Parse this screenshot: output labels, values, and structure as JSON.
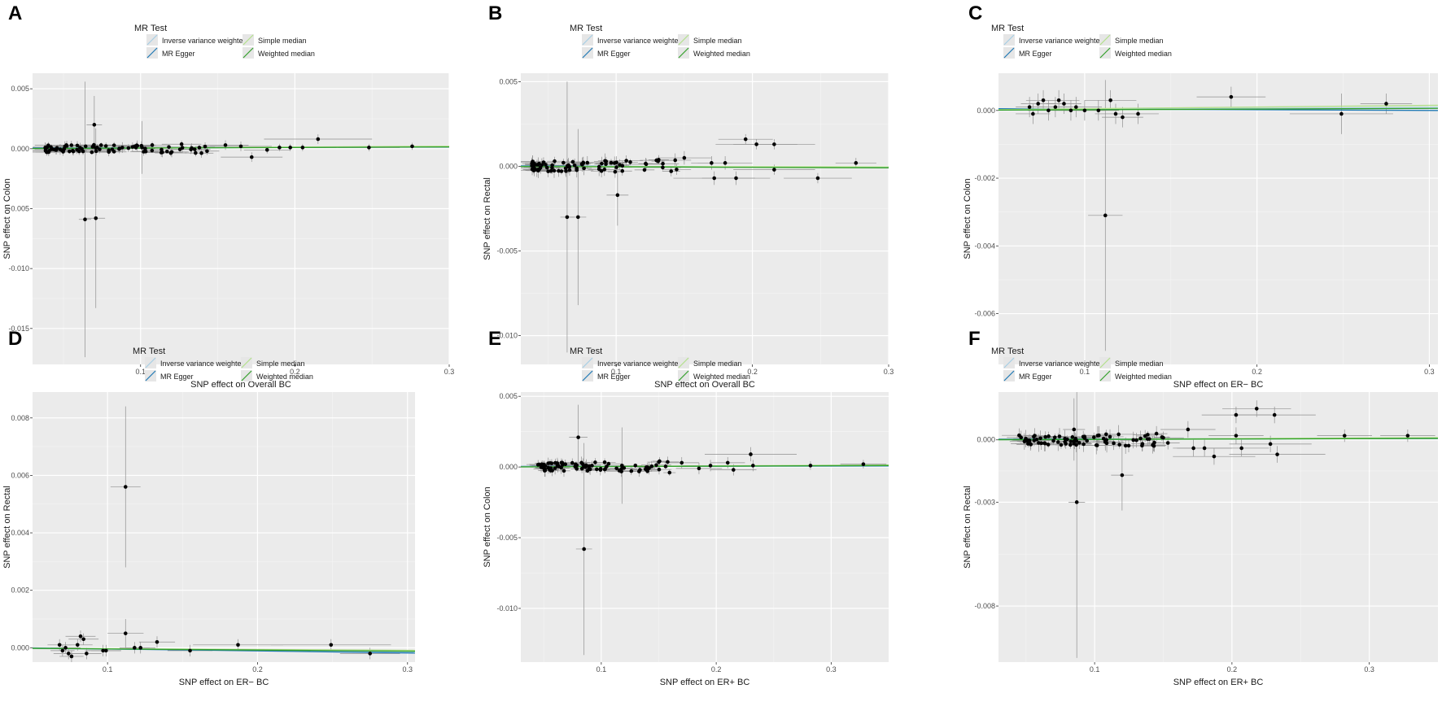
{
  "legend_common": {
    "title": "MR Test",
    "items": [
      {
        "name": "Inverse variance weighted",
        "color": "#a6cee3"
      },
      {
        "name": "MR Egger",
        "color": "#1f78b4"
      },
      {
        "name": "Simple median",
        "color": "#b2df8a"
      },
      {
        "name": "Weighted median",
        "color": "#33a02c"
      }
    ]
  },
  "chart_data": [
    {
      "type": "scatter",
      "panel_label": "A",
      "xlabel": "SNP effect on Overall BC",
      "ylabel": "SNP effect on Colon",
      "xlim": [
        0.03,
        0.3
      ],
      "ylim": [
        -0.018,
        0.0063
      ],
      "xticks": [
        0.1,
        0.2,
        0.3
      ],
      "xtick_labels": [
        "0.1",
        "0.2",
        "0.3"
      ],
      "yticks": [
        -0.015,
        -0.01,
        -0.005,
        0.0,
        0.005
      ],
      "ytick_labels": [
        "-0.015",
        "-0.010",
        "-0.005",
        "0.000",
        "0.005"
      ],
      "points": [
        {
          "x": 0.064,
          "y": -0.0059,
          "xerr": 0.004,
          "yerr": 0.0115
        },
        {
          "x": 0.071,
          "y": -0.0058,
          "xerr": 0.006,
          "yerr": 0.0075
        },
        {
          "x": 0.07,
          "y": 0.002,
          "xerr": 0.005,
          "yerr": 0.0024
        },
        {
          "x": 0.101,
          "y": 0.0001,
          "xerr": 0.01,
          "yerr": 0.0022
        },
        {
          "x": 0.155,
          "y": 0.0003,
          "xerr": 0.015,
          "yerr": 0.0004
        },
        {
          "x": 0.165,
          "y": 0.0002,
          "xerr": 0.02,
          "yerr": 0.0004
        },
        {
          "x": 0.172,
          "y": -0.0007,
          "xerr": 0.02,
          "yerr": 0.0004
        },
        {
          "x": 0.182,
          "y": -0.0001,
          "xerr": 0.015,
          "yerr": 0.0003
        },
        {
          "x": 0.19,
          "y": 0.0001,
          "xerr": 0.015,
          "yerr": 0.0003
        },
        {
          "x": 0.197,
          "y": 0.0001,
          "xerr": 0.03,
          "yerr": 0.0003
        },
        {
          "x": 0.205,
          "y": 0.0001,
          "xerr": 0.015,
          "yerr": 0.0003
        },
        {
          "x": 0.215,
          "y": 0.0008,
          "xerr": 0.035,
          "yerr": 0.0004
        },
        {
          "x": 0.248,
          "y": 0.0001,
          "xerr": 0.02,
          "yerr": 0.0003
        },
        {
          "x": 0.276,
          "y": 0.0002,
          "xerr": 0.015,
          "yerr": 0.0003
        }
      ],
      "cluster": {
        "count": 85,
        "x_min": 0.038,
        "x_max": 0.145,
        "y_spread": 0.0004,
        "xerr": 0.009,
        "yerr": 0.0003,
        "seed": 11
      },
      "lines": [
        {
          "method": "Inverse variance weighted",
          "slope": 0.0006,
          "intercept": 0.0
        },
        {
          "method": "MR Egger",
          "slope": 0.0003,
          "intercept": 5e-05
        },
        {
          "method": "Simple median",
          "slope": 0.0007,
          "intercept": 0.0
        },
        {
          "method": "Weighted median",
          "slope": 0.0005,
          "intercept": 0.0
        }
      ]
    },
    {
      "type": "scatter",
      "panel_label": "B",
      "xlabel": "SNP effect on Overall BC",
      "ylabel": "SNP effect on Rectal",
      "xlim": [
        0.03,
        0.3
      ],
      "ylim": [
        -0.0117,
        0.0055
      ],
      "xticks": [
        0.1,
        0.2,
        0.3
      ],
      "xtick_labels": [
        "0.1",
        "0.2",
        "0.3"
      ],
      "yticks": [
        -0.01,
        -0.005,
        0.0,
        0.005
      ],
      "ytick_labels": [
        "-0.010",
        "-0.005",
        "0.000",
        "0.005"
      ],
      "points": [
        {
          "x": 0.064,
          "y": -0.003,
          "xerr": 0.005,
          "yerr": 0.008
        },
        {
          "x": 0.072,
          "y": -0.003,
          "xerr": 0.006,
          "yerr": 0.0052
        },
        {
          "x": 0.101,
          "y": -0.0017,
          "xerr": 0.008,
          "yerr": 0.0018
        },
        {
          "x": 0.15,
          "y": 0.0005,
          "xerr": 0.02,
          "yerr": 0.0004
        },
        {
          "x": 0.17,
          "y": 0.0002,
          "xerr": 0.015,
          "yerr": 0.0004
        },
        {
          "x": 0.172,
          "y": -0.0007,
          "xerr": 0.03,
          "yerr": 0.0004
        },
        {
          "x": 0.18,
          "y": 0.0002,
          "xerr": 0.02,
          "yerr": 0.0004
        },
        {
          "x": 0.188,
          "y": -0.0007,
          "xerr": 0.025,
          "yerr": 0.0004
        },
        {
          "x": 0.195,
          "y": 0.0016,
          "xerr": 0.02,
          "yerr": 0.0003
        },
        {
          "x": 0.203,
          "y": 0.0013,
          "xerr": 0.03,
          "yerr": 0.0003
        },
        {
          "x": 0.216,
          "y": 0.0013,
          "xerr": 0.03,
          "yerr": 0.0003
        },
        {
          "x": 0.216,
          "y": -0.0002,
          "xerr": 0.03,
          "yerr": 0.0003
        },
        {
          "x": 0.248,
          "y": -0.0007,
          "xerr": 0.025,
          "yerr": 0.0003
        },
        {
          "x": 0.276,
          "y": 0.0002,
          "xerr": 0.015,
          "yerr": 0.0003
        }
      ],
      "cluster": {
        "count": 80,
        "x_min": 0.038,
        "x_max": 0.145,
        "y_spread": 0.0004,
        "xerr": 0.009,
        "yerr": 0.0003,
        "seed": 23
      },
      "lines": [
        {
          "method": "Inverse variance weighted",
          "slope": -0.0002,
          "intercept": 0.0
        },
        {
          "method": "MR Egger",
          "slope": -0.0004,
          "intercept": 4e-05
        },
        {
          "method": "Simple median",
          "slope": -0.0001,
          "intercept": 0.0
        },
        {
          "method": "Weighted median",
          "slope": -0.0003,
          "intercept": 0.0
        }
      ]
    },
    {
      "type": "scatter",
      "panel_label": "C",
      "xlabel": "SNP effect on ER− BC",
      "ylabel": "SNP effect on Colon",
      "xlim": [
        0.05,
        0.305
      ],
      "ylim": [
        -0.0075,
        0.0011
      ],
      "xticks": [
        0.1,
        0.2,
        0.3
      ],
      "xtick_labels": [
        "0.1",
        "0.2",
        "0.3"
      ],
      "yticks": [
        -0.006,
        -0.004,
        -0.002,
        0.0
      ],
      "ytick_labels": [
        "-0.006",
        "-0.004",
        "-0.002",
        "0.000"
      ],
      "points": [
        {
          "x": 0.112,
          "y": -0.0031,
          "xerr": 0.01,
          "yerr": 0.004
        },
        {
          "x": 0.068,
          "y": 0.0001,
          "xerr": 0.008,
          "yerr": 0.0003
        },
        {
          "x": 0.07,
          "y": -0.0001,
          "xerr": 0.01,
          "yerr": 0.0003
        },
        {
          "x": 0.073,
          "y": 0.0002,
          "xerr": 0.01,
          "yerr": 0.0003
        },
        {
          "x": 0.076,
          "y": 0.0003,
          "xerr": 0.01,
          "yerr": 0.0003
        },
        {
          "x": 0.079,
          "y": 0.0,
          "xerr": 0.012,
          "yerr": 0.0003
        },
        {
          "x": 0.083,
          "y": 0.0001,
          "xerr": 0.01,
          "yerr": 0.0003
        },
        {
          "x": 0.085,
          "y": 0.0003,
          "xerr": 0.012,
          "yerr": 0.0003
        },
        {
          "x": 0.088,
          "y": 0.0002,
          "xerr": 0.01,
          "yerr": 0.0003
        },
        {
          "x": 0.092,
          "y": 0.0,
          "xerr": 0.01,
          "yerr": 0.0003
        },
        {
          "x": 0.095,
          "y": 0.0001,
          "xerr": 0.015,
          "yerr": 0.0003
        },
        {
          "x": 0.1,
          "y": 0.0,
          "xerr": 0.012,
          "yerr": 0.0003
        },
        {
          "x": 0.108,
          "y": 0.0,
          "xerr": 0.012,
          "yerr": 0.0003
        },
        {
          "x": 0.115,
          "y": 0.0003,
          "xerr": 0.015,
          "yerr": 0.0003
        },
        {
          "x": 0.118,
          "y": -0.0001,
          "xerr": 0.012,
          "yerr": 0.0003
        },
        {
          "x": 0.122,
          "y": -0.0002,
          "xerr": 0.012,
          "yerr": 0.0003
        },
        {
          "x": 0.131,
          "y": -0.0001,
          "xerr": 0.012,
          "yerr": 0.0003
        },
        {
          "x": 0.185,
          "y": 0.0004,
          "xerr": 0.02,
          "yerr": 0.0003
        },
        {
          "x": 0.249,
          "y": -0.0001,
          "xerr": 0.03,
          "yerr": 0.0006
        },
        {
          "x": 0.275,
          "y": 0.0002,
          "xerr": 0.015,
          "yerr": 0.0003
        }
      ],
      "cluster": {
        "count": 0,
        "x_min": 0.06,
        "x_max": 0.13,
        "y_spread": 0.0002,
        "xerr": 0.01,
        "yerr": 0.0003,
        "seed": 5
      },
      "lines": [
        {
          "method": "Inverse variance weighted",
          "slope": 0.0003,
          "intercept": 0.0
        },
        {
          "method": "MR Egger",
          "slope": -0.0002,
          "intercept": 6e-05
        },
        {
          "method": "Simple median",
          "slope": 0.0005,
          "intercept": 0.0
        },
        {
          "method": "Weighted median",
          "slope": 0.0002,
          "intercept": 0.0
        }
      ]
    },
    {
      "type": "scatter",
      "panel_label": "D",
      "xlabel": "SNP effect on ER− BC",
      "ylabel": "SNP effect on Rectal",
      "xlim": [
        0.05,
        0.305
      ],
      "ylim": [
        -0.0005,
        0.0089
      ],
      "xticks": [
        0.1,
        0.2,
        0.3
      ],
      "xtick_labels": [
        "0.1",
        "0.2",
        "0.3"
      ],
      "yticks": [
        0.0,
        0.002,
        0.004,
        0.006,
        0.008
      ],
      "ytick_labels": [
        "0.000",
        "0.002",
        "0.004",
        "0.006",
        "0.008"
      ],
      "points": [
        {
          "x": 0.112,
          "y": 0.0056,
          "xerr": 0.01,
          "yerr": 0.0028
        },
        {
          "x": 0.112,
          "y": 0.0005,
          "xerr": 0.012,
          "yerr": 0.0005
        },
        {
          "x": 0.068,
          "y": 0.0001,
          "xerr": 0.008,
          "yerr": 0.0002
        },
        {
          "x": 0.07,
          "y": -0.0001,
          "xerr": 0.008,
          "yerr": 0.0002
        },
        {
          "x": 0.072,
          "y": 0.0,
          "xerr": 0.01,
          "yerr": 0.0002
        },
        {
          "x": 0.074,
          "y": -0.0002,
          "xerr": 0.01,
          "yerr": 0.0002
        },
        {
          "x": 0.076,
          "y": -0.0003,
          "xerr": 0.008,
          "yerr": 0.0002
        },
        {
          "x": 0.08,
          "y": 0.0001,
          "xerr": 0.01,
          "yerr": 0.0002
        },
        {
          "x": 0.082,
          "y": 0.0004,
          "xerr": 0.01,
          "yerr": 0.0002
        },
        {
          "x": 0.084,
          "y": 0.0003,
          "xerr": 0.01,
          "yerr": 0.0002
        },
        {
          "x": 0.086,
          "y": -0.0002,
          "xerr": 0.01,
          "yerr": 0.0002
        },
        {
          "x": 0.097,
          "y": -0.0001,
          "xerr": 0.012,
          "yerr": 0.0002
        },
        {
          "x": 0.099,
          "y": -0.0001,
          "xerr": 0.01,
          "yerr": 0.0002
        },
        {
          "x": 0.118,
          "y": 0.0,
          "xerr": 0.01,
          "yerr": 0.0002
        },
        {
          "x": 0.122,
          "y": 0.0,
          "xerr": 0.01,
          "yerr": 0.0002
        },
        {
          "x": 0.133,
          "y": 0.0002,
          "xerr": 0.012,
          "yerr": 0.0002
        },
        {
          "x": 0.155,
          "y": -0.0001,
          "xerr": 0.015,
          "yerr": 0.0002
        },
        {
          "x": 0.187,
          "y": 0.0001,
          "xerr": 0.03,
          "yerr": 0.0002
        },
        {
          "x": 0.249,
          "y": 0.0001,
          "xerr": 0.04,
          "yerr": 0.0002
        },
        {
          "x": 0.275,
          "y": -0.0002,
          "xerr": 0.02,
          "yerr": 0.0002
        }
      ],
      "cluster": {
        "count": 0,
        "x_min": 0.06,
        "x_max": 0.13,
        "y_spread": 0.0002,
        "xerr": 0.01,
        "yerr": 0.0002,
        "seed": 7
      },
      "lines": [
        {
          "method": "Inverse variance weighted",
          "slope": -0.0005,
          "intercept": 0.0
        },
        {
          "method": "MR Egger",
          "slope": -0.0007,
          "intercept": 3e-05
        },
        {
          "method": "Simple median",
          "slope": -0.0003,
          "intercept": 0.0
        },
        {
          "method": "Weighted median",
          "slope": -0.0004,
          "intercept": 0.0
        }
      ]
    },
    {
      "type": "scatter",
      "panel_label": "E",
      "xlabel": "SNP effect on ER+ BC",
      "ylabel": "SNP effect on Colon",
      "xlim": [
        0.03,
        0.35
      ],
      "ylim": [
        -0.0138,
        0.0053
      ],
      "xticks": [
        0.1,
        0.2,
        0.3
      ],
      "xtick_labels": [
        "0.1",
        "0.2",
        "0.3"
      ],
      "yticks": [
        -0.01,
        -0.005,
        0.0,
        0.005
      ],
      "ytick_labels": [
        "-0.010",
        "-0.005",
        "0.000",
        "0.005"
      ],
      "points": [
        {
          "x": 0.085,
          "y": -0.0058,
          "xerr": 0.007,
          "yerr": 0.0075
        },
        {
          "x": 0.08,
          "y": 0.0021,
          "xerr": 0.008,
          "yerr": 0.0023
        },
        {
          "x": 0.118,
          "y": 0.0001,
          "xerr": 0.01,
          "yerr": 0.0027
        },
        {
          "x": 0.17,
          "y": 0.0003,
          "xerr": 0.015,
          "yerr": 0.0004
        },
        {
          "x": 0.185,
          "y": -0.0001,
          "xerr": 0.02,
          "yerr": 0.0004
        },
        {
          "x": 0.195,
          "y": 0.0001,
          "xerr": 0.025,
          "yerr": 0.0004
        },
        {
          "x": 0.21,
          "y": 0.0003,
          "xerr": 0.015,
          "yerr": 0.0004
        },
        {
          "x": 0.215,
          "y": -0.0002,
          "xerr": 0.02,
          "yerr": 0.0004
        },
        {
          "x": 0.23,
          "y": 0.0009,
          "xerr": 0.04,
          "yerr": 0.0005
        },
        {
          "x": 0.232,
          "y": 0.0001,
          "xerr": 0.02,
          "yerr": 0.0004
        },
        {
          "x": 0.282,
          "y": 0.0001,
          "xerr": 0.025,
          "yerr": 0.0003
        },
        {
          "x": 0.328,
          "y": 0.0002,
          "xerr": 0.02,
          "yerr": 0.0003
        }
      ],
      "cluster": {
        "count": 85,
        "x_min": 0.045,
        "x_max": 0.16,
        "y_spread": 0.0004,
        "xerr": 0.009,
        "yerr": 0.0003,
        "seed": 31
      },
      "lines": [
        {
          "method": "Inverse variance weighted",
          "slope": 0.0003,
          "intercept": 0.0
        },
        {
          "method": "MR Egger",
          "slope": 0.0001,
          "intercept": 4e-05
        },
        {
          "method": "Simple median",
          "slope": 0.0004,
          "intercept": 0.0
        },
        {
          "method": "Weighted median",
          "slope": 0.0003,
          "intercept": 0.0
        }
      ]
    },
    {
      "type": "scatter",
      "panel_label": "F",
      "xlabel": "SNP effect on ER+ BC",
      "ylabel": "SNP effect on Rectal",
      "xlim": [
        0.03,
        0.35
      ],
      "ylim": [
        -0.0107,
        0.0023
      ],
      "xticks": [
        0.1,
        0.2,
        0.3
      ],
      "xtick_labels": [
        "0.1",
        "0.2",
        "0.3"
      ],
      "yticks": [
        -0.008,
        -0.003,
        0.0
      ],
      "ytick_labels": [
        "-0.008",
        "-0.003",
        "0.000"
      ],
      "points": [
        {
          "x": 0.087,
          "y": -0.003,
          "xerr": 0.006,
          "yerr": 0.0075
        },
        {
          "x": 0.12,
          "y": -0.0017,
          "xerr": 0.008,
          "yerr": 0.0017
        },
        {
          "x": 0.085,
          "y": 0.0005,
          "xerr": 0.008,
          "yerr": 0.0015
        },
        {
          "x": 0.15,
          "y": 0.0001,
          "xerr": 0.015,
          "yerr": 0.0003
        },
        {
          "x": 0.168,
          "y": 0.0005,
          "xerr": 0.02,
          "yerr": 0.0004
        },
        {
          "x": 0.172,
          "y": -0.0004,
          "xerr": 0.015,
          "yerr": 0.0004
        },
        {
          "x": 0.18,
          "y": -0.0004,
          "xerr": 0.02,
          "yerr": 0.0004
        },
        {
          "x": 0.187,
          "y": -0.0008,
          "xerr": 0.03,
          "yerr": 0.0004
        },
        {
          "x": 0.203,
          "y": 0.0012,
          "xerr": 0.025,
          "yerr": 0.0004
        },
        {
          "x": 0.203,
          "y": 0.0002,
          "xerr": 0.02,
          "yerr": 0.0004
        },
        {
          "x": 0.207,
          "y": -0.0004,
          "xerr": 0.02,
          "yerr": 0.0004
        },
        {
          "x": 0.218,
          "y": 0.0015,
          "xerr": 0.025,
          "yerr": 0.0004
        },
        {
          "x": 0.228,
          "y": -0.0002,
          "xerr": 0.03,
          "yerr": 0.0004
        },
        {
          "x": 0.231,
          "y": 0.0012,
          "xerr": 0.03,
          "yerr": 0.0004
        },
        {
          "x": 0.233,
          "y": -0.0007,
          "xerr": 0.035,
          "yerr": 0.0004
        },
        {
          "x": 0.282,
          "y": 0.0002,
          "xerr": 0.02,
          "yerr": 0.0003
        },
        {
          "x": 0.328,
          "y": 0.0002,
          "xerr": 0.02,
          "yerr": 0.0003
        }
      ],
      "cluster": {
        "count": 80,
        "x_min": 0.045,
        "x_max": 0.16,
        "y_spread": 0.0003,
        "xerr": 0.009,
        "yerr": 0.0003,
        "seed": 47
      },
      "lines": [
        {
          "method": "Inverse variance weighted",
          "slope": 0.0002,
          "intercept": 0.0
        },
        {
          "method": "MR Egger",
          "slope": 0.0001,
          "intercept": 3e-05
        },
        {
          "method": "Simple median",
          "slope": 0.0003,
          "intercept": 0.0
        },
        {
          "method": "Weighted median",
          "slope": 0.0002,
          "intercept": 0.0
        }
      ]
    }
  ]
}
